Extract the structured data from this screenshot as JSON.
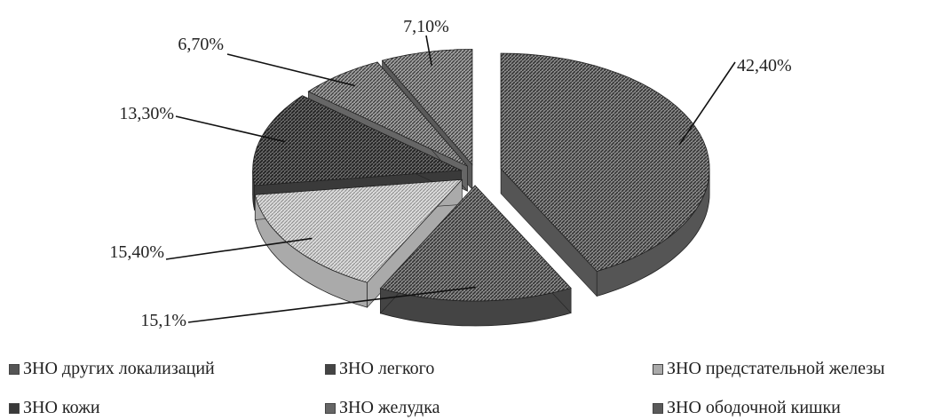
{
  "chart_data": {
    "type": "pie",
    "title": "",
    "series": [
      {
        "name": "ЗНО других локализаций",
        "value": 42.4,
        "label": "42,40%",
        "color": "#555555",
        "pattern": "dense"
      },
      {
        "name": "ЗНО легкого",
        "value": 15.1,
        "label": "15,1%",
        "color": "#444444",
        "pattern": "dense"
      },
      {
        "name": "ЗНО предстательной железы",
        "value": 15.4,
        "label": "15,40%",
        "color": "#aaaaaa",
        "pattern": "light"
      },
      {
        "name": "ЗНО кожи",
        "value": 13.3,
        "label": "13,30%",
        "color": "#3a3a3a",
        "pattern": "dark"
      },
      {
        "name": "ЗНО желудка",
        "value": 6.7,
        "label": "6,70%",
        "color": "#666666",
        "pattern": "medium"
      },
      {
        "name": "ЗНО ободочной кишки",
        "value": 7.1,
        "label": "7,10%",
        "color": "#5a5a5a",
        "pattern": "medium"
      }
    ],
    "legend_position": "bottom",
    "style": "3d-exploded"
  }
}
